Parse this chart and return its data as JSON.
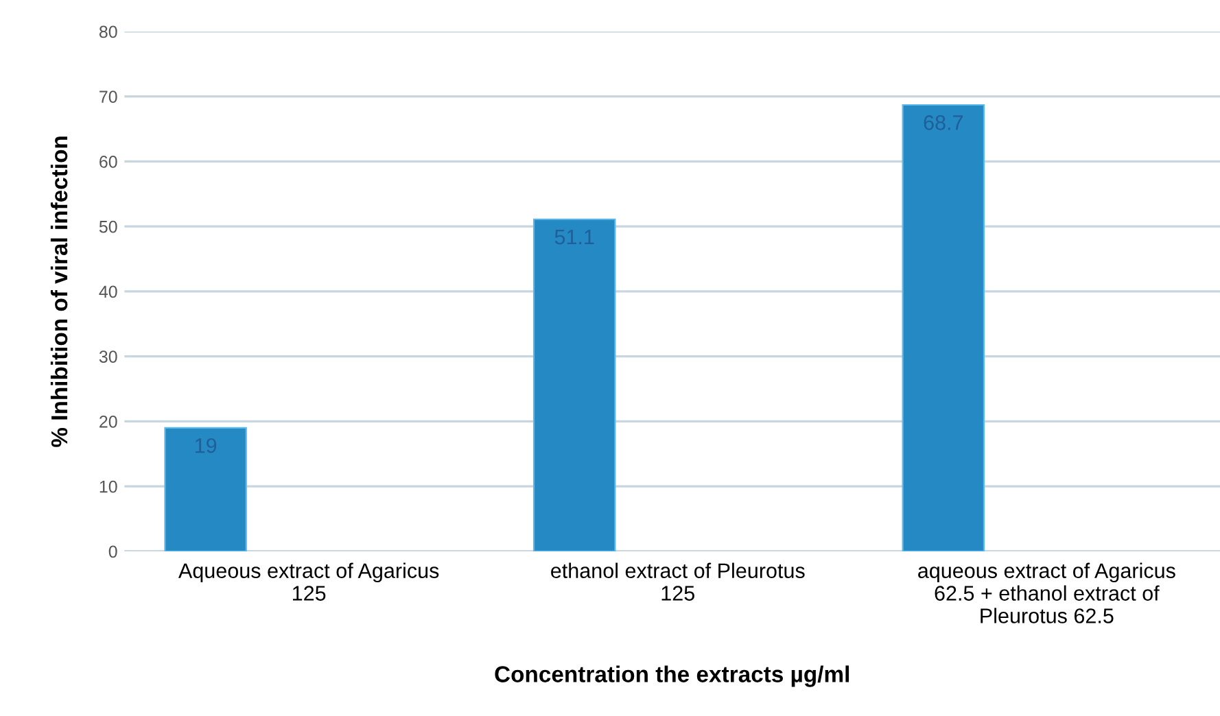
{
  "chart_data": {
    "type": "bar",
    "xlabel": "Concentration the extracts µg/ml",
    "ylabel": "% Inhibition of viral infection",
    "categories": [
      "Aqueous extract of Agaricus\n125",
      "ethanol extract of Pleurotus\n125",
      "aqueous extract of Agaricus\n62.5 + ethanol extract of\nPleurotus 62.5"
    ],
    "values": [
      19,
      51.1,
      68.7
    ],
    "color": "#2589c4",
    "ylim": [
      0,
      80
    ],
    "yticks": [
      0,
      10,
      20,
      30,
      40,
      50,
      60,
      70,
      80
    ],
    "grid": "y",
    "data_labels": true
  }
}
